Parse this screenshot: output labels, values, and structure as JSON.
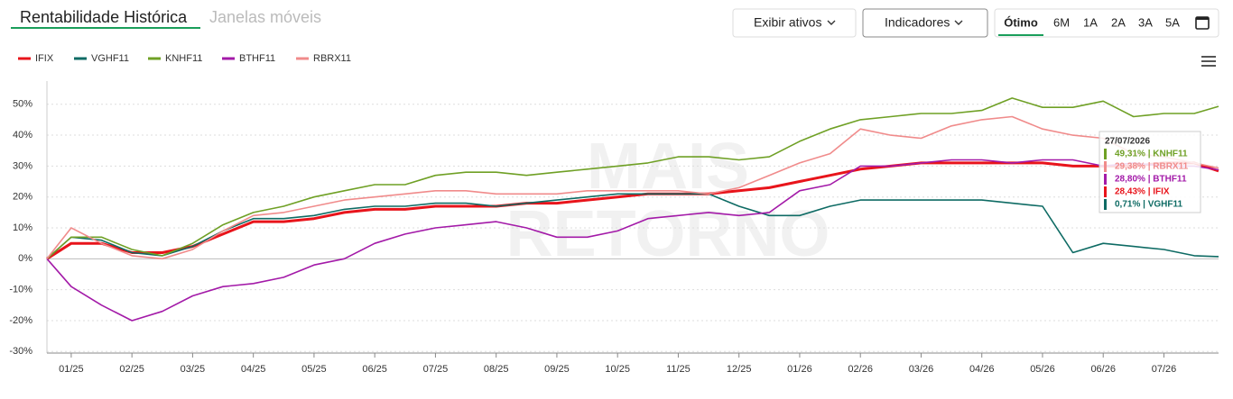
{
  "ui": {
    "tabs": [
      "Rentabilidade Histórica",
      "Janelas móveis"
    ],
    "buttons": [
      "Exibir ativos",
      "Indicadores"
    ],
    "ranges": [
      "Ótimo",
      "6M",
      "1A",
      "2A",
      "3A",
      "5A"
    ]
  },
  "chart_data": {
    "type": "line",
    "watermark": [
      "MAIS",
      "RETORNO"
    ],
    "x": [
      -0.4,
      0,
      0.5,
      1,
      1.5,
      2,
      2.5,
      3,
      3.5,
      4,
      4.5,
      5,
      5.5,
      6,
      6.5,
      7,
      7.5,
      8,
      8.5,
      9,
      9.5,
      10,
      10.5,
      11,
      11.5,
      12,
      12.5,
      13,
      13.5,
      14,
      14.5,
      15,
      15.5,
      16,
      16.5,
      17,
      17.5,
      18,
      18.5,
      18.9
    ],
    "xlim": [
      -0.4,
      18.9
    ],
    "xticks": [
      {
        "value": 0,
        "label": "01/25"
      },
      {
        "value": 1,
        "label": "02/25"
      },
      {
        "value": 2,
        "label": "03/25"
      },
      {
        "value": 3,
        "label": "04/25"
      },
      {
        "value": 4,
        "label": "05/25"
      },
      {
        "value": 5,
        "label": "06/25"
      },
      {
        "value": 6,
        "label": "07/25"
      },
      {
        "value": 7,
        "label": "08/25"
      },
      {
        "value": 8,
        "label": "09/25"
      },
      {
        "value": 9,
        "label": "10/25"
      },
      {
        "value": 10,
        "label": "11/25"
      },
      {
        "value": 11,
        "label": "12/25"
      },
      {
        "value": 12,
        "label": "01/26"
      },
      {
        "value": 13,
        "label": "02/26"
      },
      {
        "value": 14,
        "label": "03/26"
      },
      {
        "value": 15,
        "label": "04/26"
      },
      {
        "value": 16,
        "label": "05/26"
      },
      {
        "value": 17,
        "label": "06/26"
      },
      {
        "value": 18,
        "label": "07/26"
      }
    ],
    "ylim": [
      -30.5,
      57.5
    ],
    "yticks": [
      {
        "value": -30,
        "label": "-30%"
      },
      {
        "value": -20,
        "label": "-20%"
      },
      {
        "value": -10,
        "label": "-10%"
      },
      {
        "value": 0,
        "label": "0%"
      },
      {
        "value": 10,
        "label": "10%"
      },
      {
        "value": 20,
        "label": "20%"
      },
      {
        "value": 30,
        "label": "30%"
      },
      {
        "value": 40,
        "label": "40%"
      },
      {
        "value": 50,
        "label": "50%"
      }
    ],
    "grid": true,
    "series": [
      {
        "name": "IFIX",
        "color": "#e8141b",
        "values": [
          0,
          5,
          5,
          2,
          2,
          4,
          8,
          12,
          12,
          13,
          15,
          16,
          16,
          17,
          17,
          17,
          18,
          18,
          19,
          20,
          21,
          21,
          21,
          22,
          23,
          25,
          27,
          29,
          30,
          31,
          31,
          31,
          31,
          31,
          30,
          30,
          30,
          31,
          31,
          28.43
        ]
      },
      {
        "name": "VGHF11",
        "color": "#0e6b64",
        "values": [
          0,
          7,
          6,
          2,
          1,
          4,
          9,
          13,
          13,
          14,
          16,
          17,
          17,
          18,
          18,
          17,
          18,
          19,
          20,
          21,
          21,
          21,
          21,
          17,
          14,
          14,
          17,
          19,
          19,
          19,
          19,
          19,
          18,
          17,
          2,
          5,
          4,
          3,
          1,
          0.71
        ]
      },
      {
        "name": "KNHF11",
        "color": "#6fa025",
        "values": [
          0,
          7,
          7,
          3,
          1,
          5,
          11,
          15,
          17,
          20,
          22,
          24,
          24,
          27,
          28,
          28,
          27,
          28,
          29,
          30,
          31,
          33,
          33,
          32,
          33,
          38,
          42,
          45,
          46,
          47,
          47,
          48,
          52,
          49,
          49,
          51,
          46,
          47,
          47,
          49.31
        ]
      },
      {
        "name": "BTHF11",
        "color": "#a31aa8",
        "values": [
          0,
          -9,
          -15,
          -20,
          -17,
          -12,
          -9,
          -8,
          -6,
          -2,
          0,
          5,
          8,
          10,
          11,
          12,
          10,
          7,
          7,
          9,
          13,
          14,
          15,
          14,
          15,
          22,
          24,
          30,
          30,
          31,
          32,
          32,
          31,
          32,
          32,
          30,
          31,
          30,
          30,
          28.8
        ]
      },
      {
        "name": "RBRX11",
        "color": "#f08b8b",
        "values": [
          0,
          10,
          5,
          1,
          0,
          3,
          9,
          14,
          15,
          17,
          19,
          20,
          21,
          22,
          22,
          21,
          21,
          21,
          22,
          22,
          22,
          22,
          21,
          23,
          27,
          31,
          34,
          42,
          40,
          39,
          43,
          45,
          46,
          42,
          40,
          39,
          34,
          33,
          31,
          29.38
        ]
      }
    ],
    "tooltip": {
      "title": "27/07/2026",
      "items": [
        {
          "text": "49,31% | KNHF11",
          "color": "#6fa025"
        },
        {
          "text": "29,38% | RBRX11",
          "color": "#f08b8b"
        },
        {
          "text": "28,80% | BTHF11",
          "color": "#a31aa8"
        },
        {
          "text": "28,43% | IFIX",
          "color": "#e8141b"
        },
        {
          "text": "0,71%  | VGHF11",
          "color": "#0e6b64"
        }
      ]
    }
  }
}
